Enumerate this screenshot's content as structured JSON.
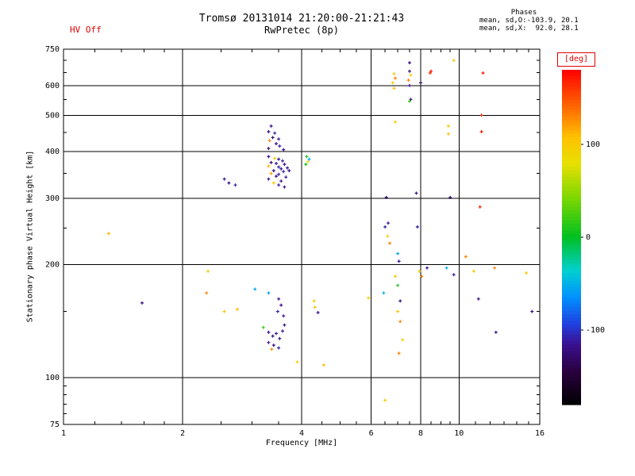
{
  "annotations": {
    "hv_status": "HV Off",
    "phases_label": "Phases",
    "phase_o": "mean, sd,O:-103.9, 20.1",
    "phase_x": "mean, sd,X:  92.0, 28.1"
  },
  "chart_data": {
    "type": "scatter",
    "title": "Tromsø 20131014 21:20:00-21:21:43",
    "subtitle": "RwPretec (8p)",
    "xlabel": "Frequency [MHz]",
    "ylabel": "Stationary phase Virtual Height [km]",
    "xscale": "log",
    "yscale": "log",
    "xlim": [
      1,
      16
    ],
    "ylim": [
      75,
      750
    ],
    "grid": true,
    "x_major_ticks": [
      1,
      2,
      4,
      6,
      8,
      10,
      16
    ],
    "x_minor_ticks": [
      1.2,
      1.4,
      1.6,
      1.8,
      2.5,
      3,
      3.5,
      4.5,
      5,
      5.5,
      6.5,
      7,
      7.5,
      8.5,
      9,
      9.5,
      11,
      12,
      13,
      14,
      15
    ],
    "x_grid_values": [
      2,
      4,
      6,
      8,
      10
    ],
    "y_major_ticks": [
      75,
      100,
      200,
      300,
      400,
      500,
      600,
      750
    ],
    "y_minor_ticks": [
      80,
      85,
      90,
      95,
      150,
      250,
      350,
      450,
      550,
      650,
      700
    ],
    "y_grid_values": [
      100,
      200,
      300,
      400,
      500,
      600
    ],
    "colorbar": {
      "label": "[deg]",
      "min": -180,
      "max": 180,
      "ticks": [
        100,
        0,
        -100
      ],
      "stops": [
        [
          0.0,
          "#000000"
        ],
        [
          0.1,
          "#2a0040"
        ],
        [
          0.18,
          "#3a1090"
        ],
        [
          0.24,
          "#2040e0"
        ],
        [
          0.32,
          "#0090ff"
        ],
        [
          0.4,
          "#00d0d0"
        ],
        [
          0.5,
          "#00c020"
        ],
        [
          0.62,
          "#80d800"
        ],
        [
          0.72,
          "#e8e000"
        ],
        [
          0.8,
          "#ffc000"
        ],
        [
          0.88,
          "#ff7000"
        ],
        [
          1.0,
          "#ff0000"
        ]
      ]
    },
    "color_variable": "phase [deg]",
    "points": [
      [
        3.35,
        468,
        -115
      ],
      [
        3.3,
        452,
        -120
      ],
      [
        3.42,
        448,
        -110
      ],
      [
        3.38,
        436,
        -125
      ],
      [
        3.32,
        428,
        130
      ],
      [
        3.5,
        432,
        -115
      ],
      [
        3.45,
        420,
        -120
      ],
      [
        3.52,
        414,
        -110
      ],
      [
        3.3,
        408,
        -125
      ],
      [
        3.6,
        405,
        -115
      ],
      [
        3.3,
        388,
        -120
      ],
      [
        3.42,
        384,
        100
      ],
      [
        3.5,
        382,
        -115
      ],
      [
        3.58,
        378,
        -110
      ],
      [
        3.35,
        374,
        -125
      ],
      [
        3.45,
        372,
        -115
      ],
      [
        3.62,
        370,
        -120
      ],
      [
        3.3,
        366,
        110
      ],
      [
        3.5,
        364,
        -110
      ],
      [
        3.55,
        360,
        -120
      ],
      [
        3.68,
        362,
        -115
      ],
      [
        3.4,
        356,
        -125
      ],
      [
        3.6,
        354,
        -110
      ],
      [
        3.72,
        356,
        -115
      ],
      [
        3.35,
        350,
        120
      ],
      [
        3.5,
        348,
        -115
      ],
      [
        3.45,
        344,
        -120
      ],
      [
        3.65,
        342,
        -110
      ],
      [
        3.3,
        338,
        -115
      ],
      [
        3.55,
        334,
        -120
      ],
      [
        3.4,
        330,
        100
      ],
      [
        3.5,
        326,
        -110
      ],
      [
        3.62,
        322,
        -115
      ],
      [
        2.55,
        338,
        -115
      ],
      [
        2.62,
        330,
        -120
      ],
      [
        2.72,
        326,
        -110
      ],
      [
        4.12,
        388,
        10
      ],
      [
        4.18,
        382,
        -50
      ],
      [
        4.15,
        376,
        100
      ],
      [
        4.1,
        370,
        0
      ],
      [
        1.3,
        242,
        110
      ],
      [
        1.58,
        158,
        -120
      ],
      [
        2.32,
        192,
        100
      ],
      [
        2.3,
        168,
        130
      ],
      [
        2.55,
        150,
        100
      ],
      [
        2.75,
        152,
        110
      ],
      [
        3.05,
        172,
        -55
      ],
      [
        3.3,
        168,
        -60
      ],
      [
        3.5,
        162,
        -115
      ],
      [
        3.55,
        156,
        -120
      ],
      [
        3.48,
        150,
        -110
      ],
      [
        3.6,
        146,
        -115
      ],
      [
        3.2,
        136,
        20
      ],
      [
        3.3,
        132,
        -115
      ],
      [
        3.38,
        129,
        -120
      ],
      [
        3.45,
        131,
        -110
      ],
      [
        3.52,
        127,
        -125
      ],
      [
        3.3,
        124,
        -115
      ],
      [
        3.4,
        122,
        -120
      ],
      [
        3.36,
        119,
        130
      ],
      [
        3.5,
        120,
        -110
      ],
      [
        3.58,
        133,
        -115
      ],
      [
        3.62,
        138,
        -120
      ],
      [
        3.9,
        110,
        100
      ],
      [
        4.55,
        108,
        110
      ],
      [
        4.3,
        160,
        100
      ],
      [
        4.32,
        154,
        110
      ],
      [
        4.4,
        149,
        -115
      ],
      [
        5.9,
        163,
        100
      ],
      [
        6.45,
        168,
        -55
      ],
      [
        6.55,
        302,
        -120
      ],
      [
        6.62,
        258,
        -115
      ],
      [
        6.5,
        252,
        -110
      ],
      [
        6.6,
        238,
        100
      ],
      [
        6.68,
        228,
        130
      ],
      [
        7.0,
        214,
        -55
      ],
      [
        7.05,
        204,
        -115
      ],
      [
        6.9,
        186,
        100
      ],
      [
        7.0,
        176,
        10
      ],
      [
        7.1,
        160,
        -115
      ],
      [
        7.0,
        150,
        100
      ],
      [
        7.1,
        141,
        130
      ],
      [
        7.2,
        126,
        100
      ],
      [
        7.05,
        116,
        130
      ],
      [
        6.5,
        87,
        100
      ],
      [
        7.5,
        690,
        -120
      ],
      [
        7.5,
        655,
        -120
      ],
      [
        7.55,
        640,
        100
      ],
      [
        7.45,
        620,
        130
      ],
      [
        7.5,
        600,
        -115
      ],
      [
        8.0,
        610,
        -130
      ],
      [
        7.55,
        551,
        -120
      ],
      [
        7.5,
        545,
        20
      ],
      [
        7.8,
        310,
        -115
      ],
      [
        7.85,
        252,
        -110
      ],
      [
        7.95,
        192,
        100
      ],
      [
        8.05,
        186,
        130
      ],
      [
        8.3,
        196,
        -115
      ],
      [
        6.85,
        645,
        100
      ],
      [
        6.9,
        628,
        130
      ],
      [
        6.8,
        610,
        100
      ],
      [
        6.85,
        590,
        110
      ],
      [
        6.9,
        480,
        100
      ],
      [
        8.5,
        655,
        170
      ],
      [
        8.45,
        648,
        160
      ],
      [
        9.7,
        700,
        100
      ],
      [
        11.5,
        648,
        170
      ],
      [
        9.4,
        468,
        100
      ],
      [
        9.4,
        446,
        110
      ],
      [
        11.4,
        500,
        165
      ],
      [
        11.4,
        452,
        170
      ],
      [
        9.5,
        302,
        -120
      ],
      [
        11.3,
        285,
        170
      ],
      [
        10.4,
        210,
        130
      ],
      [
        10.9,
        192,
        100
      ],
      [
        12.3,
        196,
        130
      ],
      [
        14.8,
        190,
        100
      ],
      [
        9.3,
        196,
        -55
      ],
      [
        9.7,
        188,
        -115
      ],
      [
        11.2,
        162,
        -120
      ],
      [
        12.4,
        132,
        -115
      ],
      [
        15.3,
        150,
        -120
      ]
    ]
  }
}
